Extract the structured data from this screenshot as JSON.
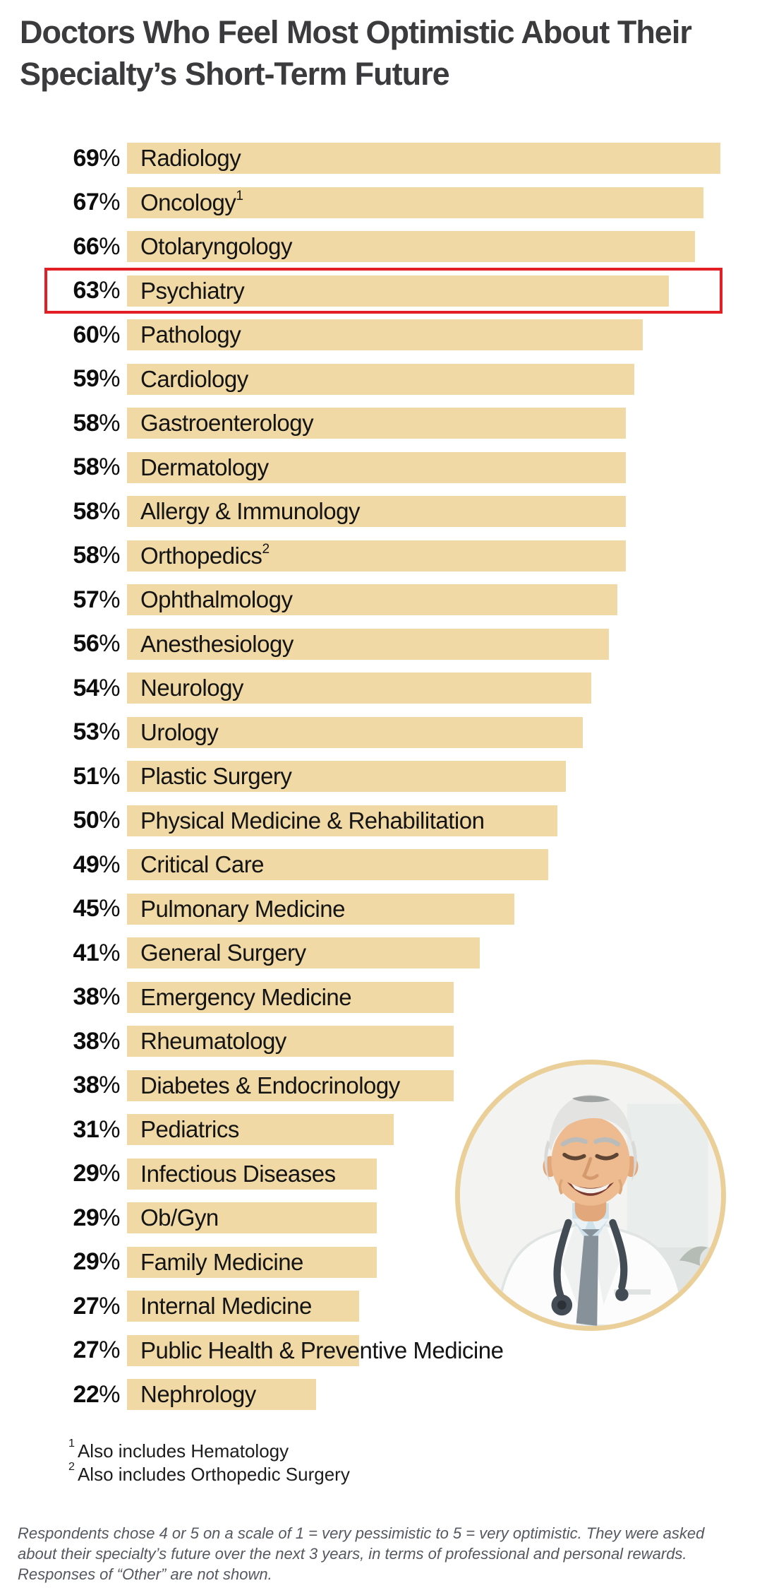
{
  "title": {
    "line1": "Doctors Who Feel Most Optimistic About Their",
    "line2": "Specialty’s Short-Term Future"
  },
  "chart_data": {
    "type": "bar",
    "orientation": "horizontal",
    "unit": "%",
    "value_range": [
      0,
      69
    ],
    "grid": false,
    "legend": false,
    "highlight_note": "Psychiatry row is outlined with a red rectangle",
    "rows": [
      {
        "label": "Radiology",
        "value": 69
      },
      {
        "label": "Oncology",
        "value": 67,
        "sup": "1"
      },
      {
        "label": "Otolaryngology",
        "value": 66
      },
      {
        "label": "Psychiatry",
        "value": 63,
        "highlight": true
      },
      {
        "label": "Pathology",
        "value": 60
      },
      {
        "label": "Cardiology",
        "value": 59
      },
      {
        "label": "Gastroenterology",
        "value": 58
      },
      {
        "label": "Dermatology",
        "value": 58
      },
      {
        "label": "Allergy & Immunology",
        "value": 58
      },
      {
        "label": "Orthopedics",
        "value": 58,
        "sup": "2"
      },
      {
        "label": "Ophthalmology",
        "value": 57
      },
      {
        "label": "Anesthesiology",
        "value": 56
      },
      {
        "label": "Neurology",
        "value": 54
      },
      {
        "label": "Urology",
        "value": 53
      },
      {
        "label": "Plastic Surgery",
        "value": 51
      },
      {
        "label": "Physical Medicine & Rehabilitation",
        "value": 50
      },
      {
        "label": "Critical Care",
        "value": 49
      },
      {
        "label": "Pulmonary Medicine",
        "value": 45
      },
      {
        "label": "General Surgery",
        "value": 41
      },
      {
        "label": "Emergency Medicine",
        "value": 38
      },
      {
        "label": "Rheumatology",
        "value": 38
      },
      {
        "label": "Diabetes & Endocrinology",
        "value": 38
      },
      {
        "label": "Pediatrics",
        "value": 31
      },
      {
        "label": "Infectious Diseases",
        "value": 29
      },
      {
        "label": "Ob/Gyn",
        "value": 29
      },
      {
        "label": "Family Medicine",
        "value": 29
      },
      {
        "label": "Internal Medicine",
        "value": 27
      },
      {
        "label": "Public Health & Preventive Medicine",
        "value": 27
      },
      {
        "label": "Nephrology",
        "value": 22
      }
    ]
  },
  "footnotes": [
    {
      "sup": "1",
      "text": "Also includes Hematology"
    },
    {
      "sup": "2",
      "text": "Also includes Orthopedic Surgery"
    }
  ],
  "footer": {
    "lines": [
      "Respondents chose 4 or 5 on a scale of 1 = very pessimistic to 5 = very optimistic. They were asked",
      "about their specialty’s future over the next 3 years, in terms of professional and personal rewards.",
      "Responses of “Other” are not shown."
    ]
  },
  "photo": {
    "alt": "Smiling senior male doctor in white coat with stethoscope"
  },
  "colors": {
    "bar_fill": "#F0D9A5",
    "highlight_border": "#E31E24",
    "title_text": "#3B3B3D",
    "label_text": "#141414",
    "footer_text": "#55585F",
    "photo_ring": "#EBCF99"
  }
}
